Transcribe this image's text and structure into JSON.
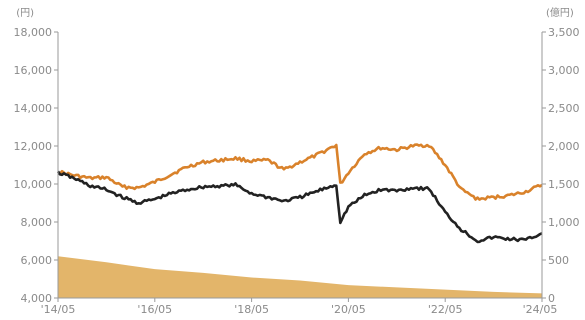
{
  "chart_data": {
    "type": "line",
    "left_unit": "(円)",
    "right_unit": "(億円)",
    "x_ticks": [
      "14/05",
      "'16/05",
      "'18/05",
      "'20/05",
      "'22/05",
      "'24/05"
    ],
    "x_ticks_display": [
      "'14/05",
      "'16/05",
      "'18/05",
      "'20/05",
      "'22/05",
      "'24/05"
    ],
    "y_left_ticks": [
      "4,000",
      "6,000",
      "8,000",
      "10,000",
      "12,000",
      "14,000",
      "16,000",
      "18,000"
    ],
    "y_right_ticks": [
      "0",
      "500",
      "1,000",
      "1,500",
      "2,000",
      "2,500",
      "3,000",
      "3,500"
    ],
    "y_left_lim": [
      4000,
      18000
    ],
    "y_right_lim": [
      0,
      3500
    ],
    "x_range": [
      "2014-05",
      "2024-05"
    ],
    "series": [
      {
        "color": "#d9822b",
        "axis": "left",
        "points": [
          [
            "2014-05",
            10650
          ],
          [
            "2014-09",
            10450
          ],
          [
            "2015-01",
            10300
          ],
          [
            "2015-05",
            10350
          ],
          [
            "2015-09",
            9850
          ],
          [
            "2016-01",
            9800
          ],
          [
            "2016-05",
            10100
          ],
          [
            "2016-09",
            10500
          ],
          [
            "2017-01",
            10900
          ],
          [
            "2017-05",
            11150
          ],
          [
            "2017-09",
            11250
          ],
          [
            "2018-01",
            11350
          ],
          [
            "2018-05",
            11200
          ],
          [
            "2018-09",
            11250
          ],
          [
            "2019-01",
            10750
          ],
          [
            "2019-05",
            11150
          ],
          [
            "2019-09",
            11500
          ],
          [
            "2020-01",
            11950
          ],
          [
            "2020-02",
            12050
          ],
          [
            "2020-03",
            10000
          ],
          [
            "2020-05",
            10600
          ],
          [
            "2020-09",
            11600
          ],
          [
            "2021-01",
            11900
          ],
          [
            "2021-05",
            11800
          ],
          [
            "2021-09",
            12000
          ],
          [
            "2022-01",
            12050
          ],
          [
            "2022-05",
            11000
          ],
          [
            "2022-09",
            9700
          ],
          [
            "2023-01",
            9200
          ],
          [
            "2023-05",
            9300
          ],
          [
            "2023-09",
            9400
          ],
          [
            "2024-01",
            9600
          ],
          [
            "2024-05",
            9950
          ]
        ]
      },
      {
        "color": "#222222",
        "axis": "left",
        "points": [
          [
            "2014-05",
            10600
          ],
          [
            "2014-09",
            10300
          ],
          [
            "2015-01",
            9900
          ],
          [
            "2015-05",
            9700
          ],
          [
            "2015-09",
            9300
          ],
          [
            "2016-01",
            9000
          ],
          [
            "2016-05",
            9200
          ],
          [
            "2016-09",
            9500
          ],
          [
            "2017-01",
            9700
          ],
          [
            "2017-05",
            9850
          ],
          [
            "2017-09",
            9900
          ],
          [
            "2018-01",
            9950
          ],
          [
            "2018-05",
            9500
          ],
          [
            "2018-09",
            9300
          ],
          [
            "2019-01",
            9100
          ],
          [
            "2019-05",
            9300
          ],
          [
            "2019-09",
            9600
          ],
          [
            "2020-01",
            9900
          ],
          [
            "2020-02",
            9950
          ],
          [
            "2020-03",
            8000
          ],
          [
            "2020-05",
            8800
          ],
          [
            "2020-09",
            9400
          ],
          [
            "2021-01",
            9700
          ],
          [
            "2021-05",
            9650
          ],
          [
            "2021-09",
            9800
          ],
          [
            "2022-01",
            9750
          ],
          [
            "2022-05",
            8500
          ],
          [
            "2022-09",
            7600
          ],
          [
            "2023-01",
            7000
          ],
          [
            "2023-05",
            7200
          ],
          [
            "2023-09",
            7100
          ],
          [
            "2024-01",
            7050
          ],
          [
            "2024-05",
            7400
          ]
        ]
      }
    ],
    "area_series": {
      "color": "#e3b56a",
      "axis": "right",
      "points": [
        [
          "2014-05",
          550
        ],
        [
          "2015-05",
          470
        ],
        [
          "2016-05",
          380
        ],
        [
          "2017-05",
          330
        ],
        [
          "2018-05",
          270
        ],
        [
          "2019-05",
          230
        ],
        [
          "2020-05",
          170
        ],
        [
          "2021-05",
          140
        ],
        [
          "2022-05",
          110
        ],
        [
          "2023-05",
          80
        ],
        [
          "2024-05",
          60
        ]
      ]
    }
  }
}
